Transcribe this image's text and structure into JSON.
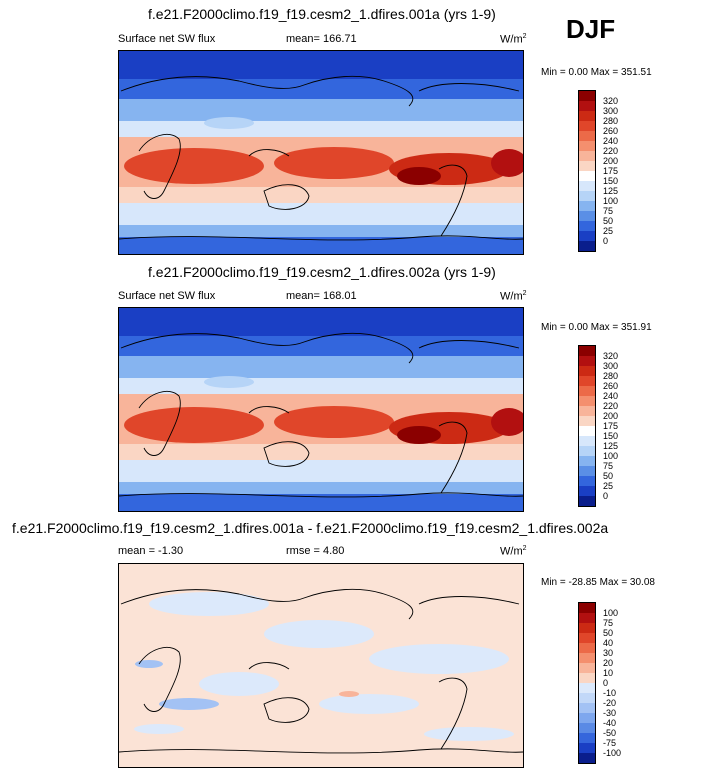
{
  "season": "DJF",
  "units_main": "W/m",
  "units_sup": "2",
  "panels": [
    {
      "title": "f.e21.F2000climo.f19_f19.cesm2_1.dfires.001a (yrs 1-9)",
      "variable": "Surface net SW flux",
      "mean": "mean= 166.71",
      "minmax": "Min =   0.00 Max = 351.51",
      "colorbar_labels": [
        "320",
        "300",
        "280",
        "260",
        "240",
        "220",
        "200",
        "175",
        "150",
        "125",
        "100",
        "75",
        "50",
        "25",
        "0"
      ],
      "colorbar_colors": [
        "#8b0000",
        "#b21010",
        "#cc2a14",
        "#e0462a",
        "#ec6a48",
        "#f48f6e",
        "#f8b49a",
        "#fad6c4",
        "#ffffff",
        "#d7e7fb",
        "#b6d4f7",
        "#86b4f0",
        "#5a8fe6",
        "#3366dd",
        "#1a3fc4",
        "#0a1e8c"
      ]
    },
    {
      "title": "f.e21.F2000climo.f19_f19.cesm2_1.dfires.002a (yrs 1-9)",
      "variable": "Surface net SW flux",
      "mean": "mean= 168.01",
      "minmax": "Min =   0.00 Max = 351.91",
      "colorbar_labels": [
        "320",
        "300",
        "280",
        "260",
        "240",
        "220",
        "200",
        "175",
        "150",
        "125",
        "100",
        "75",
        "50",
        "25",
        "0"
      ],
      "colorbar_colors": [
        "#8b0000",
        "#b21010",
        "#cc2a14",
        "#e0462a",
        "#ec6a48",
        "#f48f6e",
        "#f8b49a",
        "#fad6c4",
        "#ffffff",
        "#d7e7fb",
        "#b6d4f7",
        "#86b4f0",
        "#5a8fe6",
        "#3366dd",
        "#1a3fc4",
        "#0a1e8c"
      ]
    },
    {
      "title": "f.e21.F2000climo.f19_f19.cesm2_1.dfires.001a - f.e21.F2000climo.f19_f19.cesm2_1.dfires.002a",
      "mean": "mean =  -1.30",
      "rmse": "rmse =   4.80",
      "minmax": "Min = -28.85 Max =  30.08",
      "colorbar_labels": [
        "100",
        "75",
        "50",
        "40",
        "30",
        "20",
        "10",
        "0",
        "-10",
        "-20",
        "-30",
        "-40",
        "-50",
        "-75",
        "-100"
      ],
      "colorbar_colors": [
        "#8b0000",
        "#b21010",
        "#cc2a14",
        "#e0462a",
        "#ec6a48",
        "#f48f6e",
        "#f8b49a",
        "#fad6c4",
        "#dce9fb",
        "#c2d8f8",
        "#a3c2f4",
        "#7ea7ee",
        "#5a8ae5",
        "#3566dc",
        "#1a3fc4",
        "#0a1e8c"
      ]
    }
  ]
}
